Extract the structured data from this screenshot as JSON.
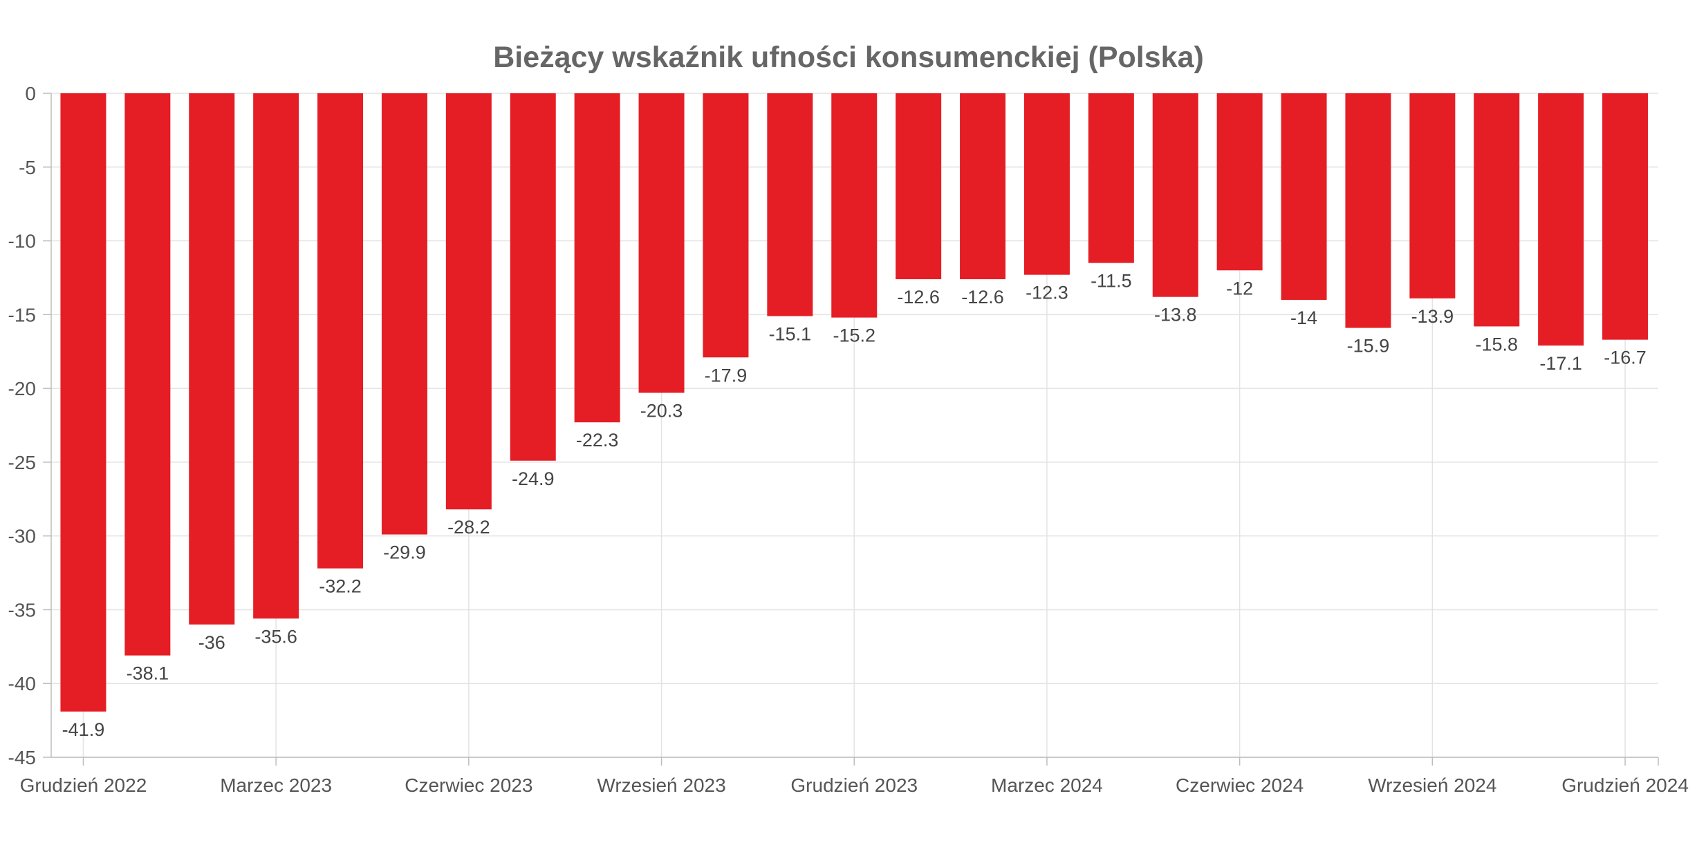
{
  "chart_data": {
    "type": "bar",
    "title": "Bieżący wskaźnik ufności konsumenckiej (Polska)",
    "xlabel": "",
    "ylabel": "",
    "ylim": [
      -45,
      0
    ],
    "yticks": [
      0,
      -5,
      -10,
      -15,
      -20,
      -25,
      -30,
      -35,
      -40,
      -45
    ],
    "grid": true,
    "legend": "none",
    "bar_color": "#e51e25",
    "x_tick_labels": [
      {
        "label": "Grudzień 2022",
        "index": 0
      },
      {
        "label": "Marzec 2023",
        "index": 3
      },
      {
        "label": "Czerwiec 2023",
        "index": 6
      },
      {
        "label": "Wrzesień 2023",
        "index": 9
      },
      {
        "label": "Grudzień 2023",
        "index": 12
      },
      {
        "label": "Marzec 2024",
        "index": 15
      },
      {
        "label": "Czerwiec 2024",
        "index": 18
      },
      {
        "label": "Wrzesień 2024",
        "index": 21
      },
      {
        "label": "Grudzień 2024",
        "index": 24
      }
    ],
    "values": [
      -41.9,
      -38.1,
      -36,
      -35.6,
      -32.2,
      -29.9,
      -28.2,
      -24.9,
      -22.3,
      -20.3,
      -17.9,
      -15.1,
      -15.2,
      -12.6,
      -12.6,
      -12.3,
      -11.5,
      -13.8,
      -12,
      -14,
      -15.9,
      -13.9,
      -15.8,
      -17.1,
      -16.7
    ]
  }
}
